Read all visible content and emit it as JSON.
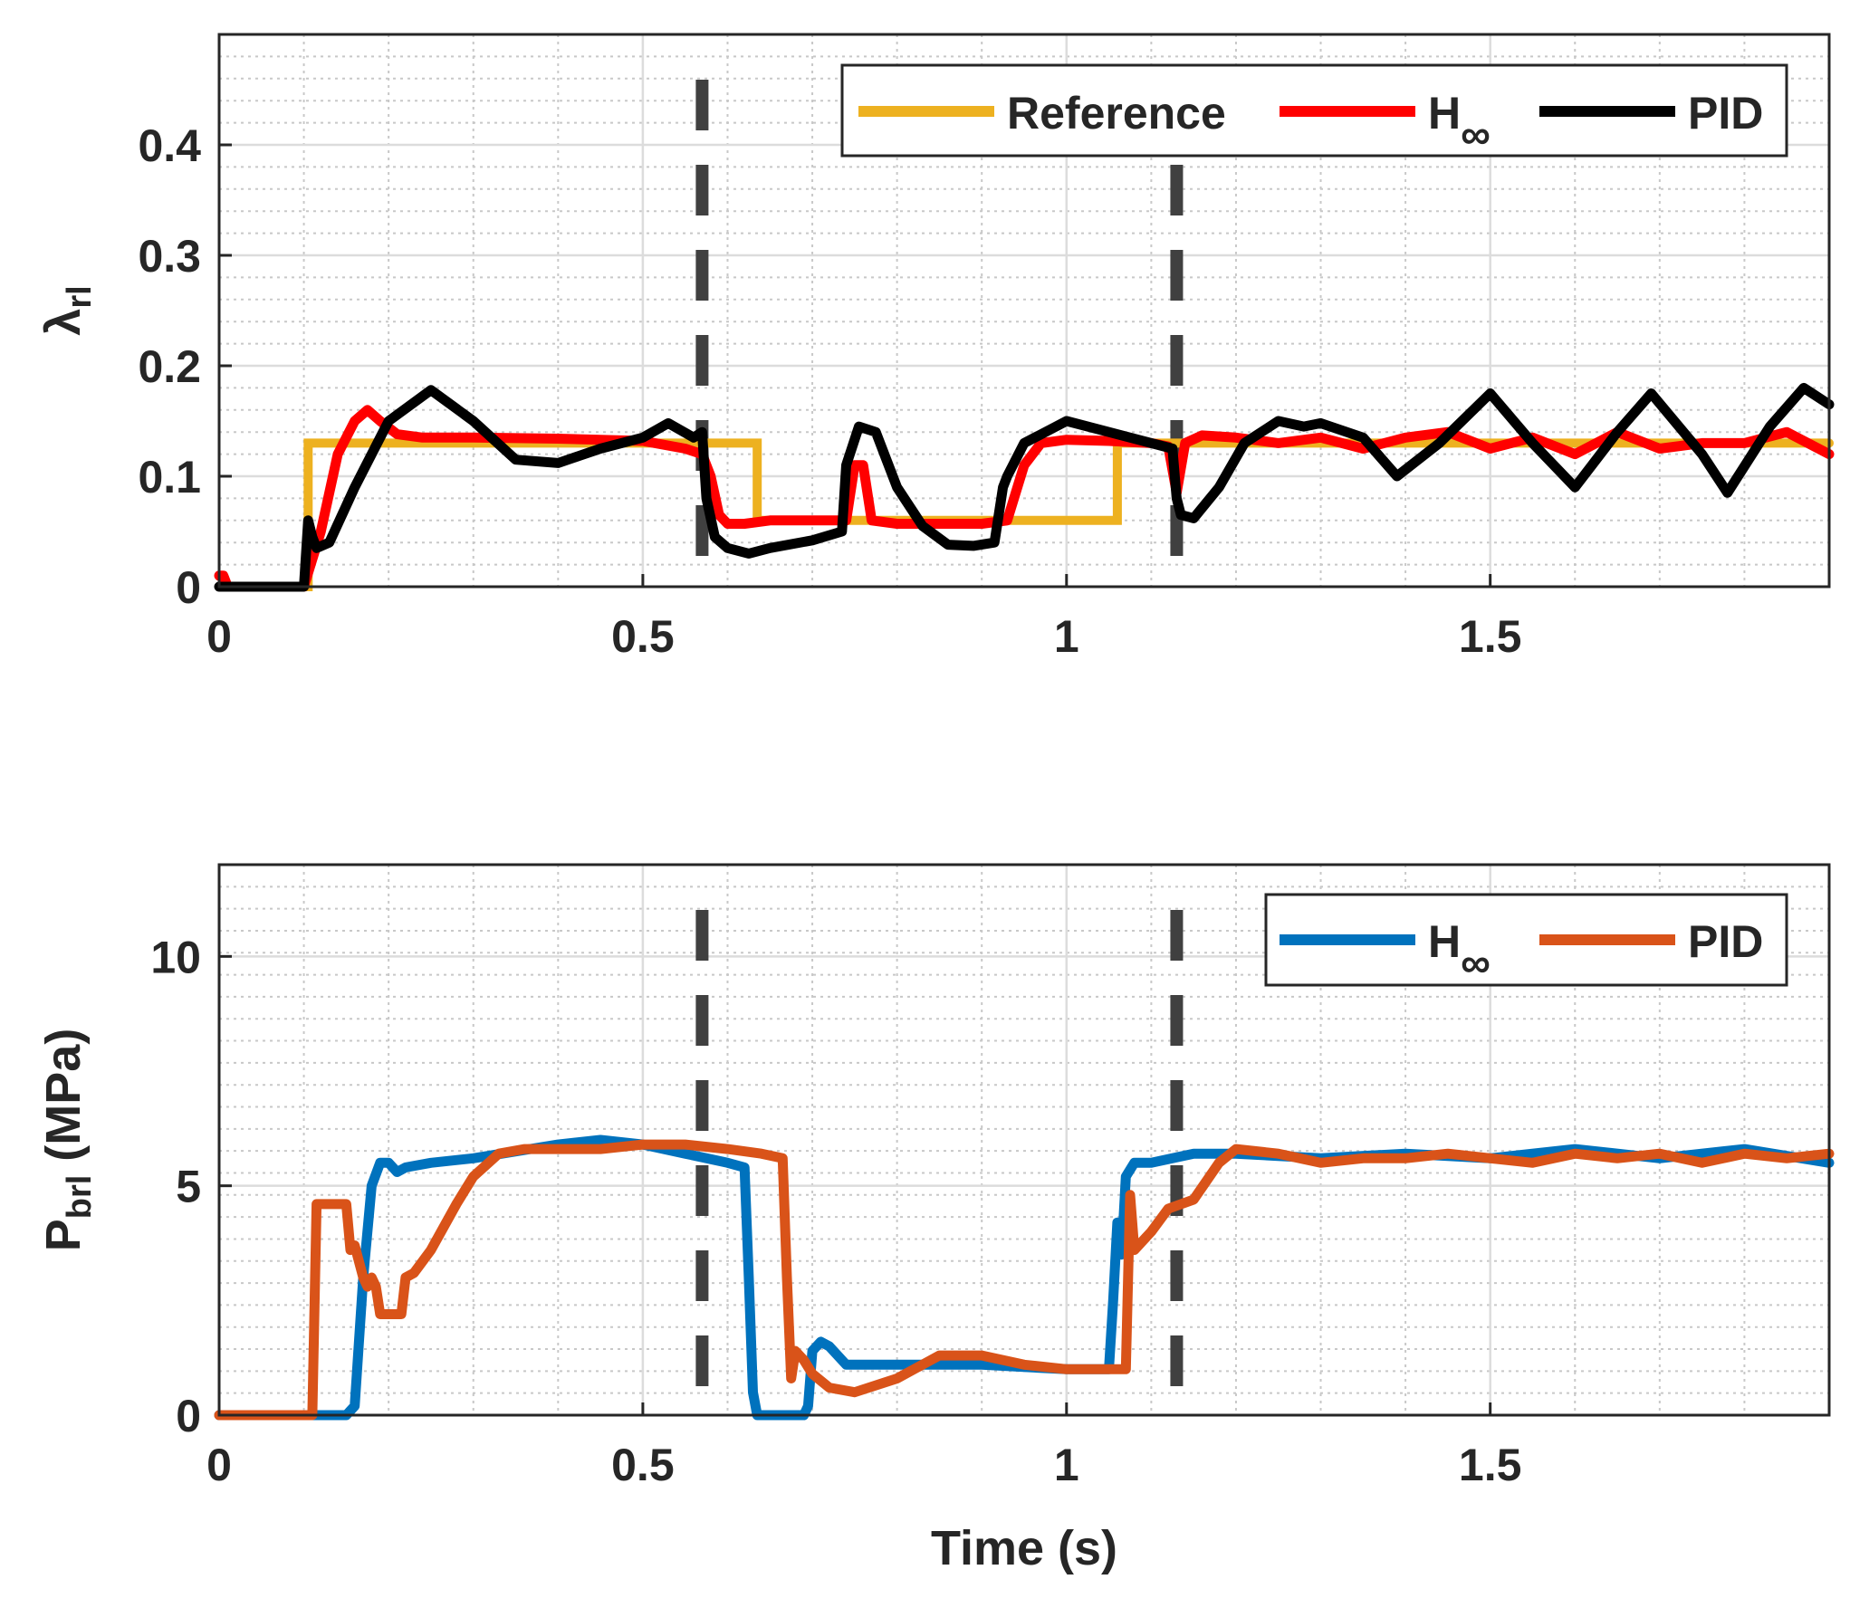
{
  "colors": {
    "reference": "#EDB120",
    "hinf_top": "#FF0000",
    "pid_top": "#000000",
    "hinf_bottom": "#0072BD",
    "pid_bottom": "#D95319",
    "event_line": "#404040",
    "grid_major": "#DCDCDC",
    "grid_minor": "#C8C8C8",
    "axes": "#262626"
  },
  "xlabel": "Time (s)",
  "chart_data": [
    {
      "type": "line",
      "ylabel": {
        "main": "λ",
        "sub": "rl"
      },
      "xlim": [
        0,
        1.9
      ],
      "ylim": [
        0,
        0.5
      ],
      "xticks": [
        0,
        0.5,
        1,
        1.5
      ],
      "xtick_labels": [
        "0",
        "0.5",
        "1",
        "1.5"
      ],
      "yticks": [
        0,
        0.1,
        0.2,
        0.3,
        0.4
      ],
      "ytick_labels": [
        "0",
        "0.1",
        "0.2",
        "0.3",
        "0.4"
      ],
      "event_lines": [
        0.57,
        1.13
      ],
      "legend_position": "top-right",
      "series": [
        {
          "key": "reference",
          "name": "Reference",
          "name_sub": "",
          "step": true,
          "x": [
            0,
            0.105,
            0.105,
            0.635,
            0.635,
            1.06,
            1.06,
            1.9
          ],
          "y": [
            0,
            0,
            0.13,
            0.13,
            0.06,
            0.06,
            0.13,
            0.13
          ]
        },
        {
          "key": "hinf_top",
          "name": "H",
          "name_sub": "∞",
          "step": false,
          "x": [
            0,
            0.005,
            0.01,
            0.1,
            0.12,
            0.14,
            0.16,
            0.175,
            0.19,
            0.21,
            0.24,
            0.3,
            0.4,
            0.5,
            0.55,
            0.57,
            0.58,
            0.59,
            0.6,
            0.62,
            0.65,
            0.7,
            0.74,
            0.75,
            0.76,
            0.77,
            0.8,
            0.85,
            0.9,
            0.93,
            0.95,
            0.97,
            1.0,
            1.05,
            1.1,
            1.12,
            1.13,
            1.14,
            1.16,
            1.2,
            1.25,
            1.3,
            1.35,
            1.4,
            1.45,
            1.5,
            1.55,
            1.6,
            1.65,
            1.7,
            1.75,
            1.8,
            1.85,
            1.9
          ],
          "y": [
            0.01,
            0.01,
            0,
            0,
            0.05,
            0.12,
            0.15,
            0.16,
            0.15,
            0.138,
            0.135,
            0.135,
            0.134,
            0.132,
            0.125,
            0.12,
            0.1,
            0.065,
            0.057,
            0.057,
            0.06,
            0.06,
            0.06,
            0.11,
            0.11,
            0.06,
            0.057,
            0.057,
            0.057,
            0.06,
            0.11,
            0.13,
            0.133,
            0.132,
            0.13,
            0.127,
            0.085,
            0.13,
            0.137,
            0.135,
            0.13,
            0.135,
            0.125,
            0.135,
            0.14,
            0.125,
            0.135,
            0.12,
            0.14,
            0.125,
            0.13,
            0.13,
            0.14,
            0.12
          ]
        },
        {
          "key": "pid_top",
          "name": "PID",
          "name_sub": "",
          "step": false,
          "x": [
            0,
            0.1,
            0.105,
            0.11,
            0.115,
            0.13,
            0.16,
            0.2,
            0.25,
            0.3,
            0.35,
            0.4,
            0.45,
            0.5,
            0.53,
            0.56,
            0.57,
            0.575,
            0.585,
            0.6,
            0.625,
            0.65,
            0.7,
            0.735,
            0.74,
            0.755,
            0.775,
            0.8,
            0.83,
            0.86,
            0.89,
            0.915,
            0.925,
            0.93,
            0.95,
            1.0,
            1.05,
            1.1,
            1.125,
            1.13,
            1.135,
            1.15,
            1.18,
            1.21,
            1.25,
            1.28,
            1.3,
            1.35,
            1.39,
            1.44,
            1.5,
            1.55,
            1.6,
            1.65,
            1.69,
            1.75,
            1.78,
            1.83,
            1.87,
            1.9
          ],
          "y": [
            0,
            0,
            0.06,
            0.045,
            0.035,
            0.04,
            0.09,
            0.15,
            0.178,
            0.15,
            0.115,
            0.112,
            0.125,
            0.135,
            0.148,
            0.135,
            0.14,
            0.08,
            0.045,
            0.035,
            0.03,
            0.035,
            0.042,
            0.05,
            0.11,
            0.145,
            0.14,
            0.09,
            0.055,
            0.038,
            0.037,
            0.04,
            0.09,
            0.1,
            0.13,
            0.15,
            0.14,
            0.13,
            0.125,
            0.08,
            0.065,
            0.062,
            0.09,
            0.13,
            0.15,
            0.145,
            0.148,
            0.135,
            0.1,
            0.13,
            0.175,
            0.13,
            0.09,
            0.14,
            0.175,
            0.12,
            0.085,
            0.145,
            0.18,
            0.165
          ]
        }
      ]
    },
    {
      "type": "line",
      "ylabel": {
        "main": "P",
        "sub": "brl",
        "suffix": " (MPa)"
      },
      "xlim": [
        0,
        1.9
      ],
      "ylim": [
        0,
        12
      ],
      "xticks": [
        0,
        0.5,
        1,
        1.5
      ],
      "xtick_labels": [
        "0",
        "0.5",
        "1",
        "1.5"
      ],
      "yticks": [
        0,
        5,
        10
      ],
      "ytick_labels": [
        "0",
        "5",
        "10"
      ],
      "event_lines": [
        0.57,
        1.13
      ],
      "legend_position": "top-right",
      "series": [
        {
          "key": "hinf_bottom",
          "name": "H",
          "name_sub": "∞",
          "step": false,
          "x": [
            0,
            0.15,
            0.16,
            0.17,
            0.18,
            0.19,
            0.2,
            0.21,
            0.22,
            0.25,
            0.3,
            0.4,
            0.45,
            0.5,
            0.55,
            0.6,
            0.62,
            0.625,
            0.63,
            0.635,
            0.69,
            0.695,
            0.7,
            0.71,
            0.72,
            0.74,
            0.8,
            0.9,
            1.0,
            1.05,
            1.055,
            1.06,
            1.065,
            1.07,
            1.08,
            1.1,
            1.15,
            1.2,
            1.3,
            1.4,
            1.5,
            1.6,
            1.7,
            1.8,
            1.9
          ],
          "y": [
            0,
            0,
            0.2,
            3,
            5,
            5.5,
            5.5,
            5.3,
            5.4,
            5.5,
            5.6,
            5.9,
            6.0,
            5.9,
            5.7,
            5.5,
            5.4,
            3,
            0.5,
            0,
            0,
            0.2,
            1.4,
            1.6,
            1.5,
            1.1,
            1.1,
            1.1,
            1.0,
            1.0,
            2.5,
            4.2,
            3.5,
            5.2,
            5.5,
            5.5,
            5.7,
            5.7,
            5.6,
            5.7,
            5.6,
            5.8,
            5.6,
            5.8,
            5.5
          ]
        },
        {
          "key": "pid_bottom",
          "name": "PID",
          "name_sub": "",
          "step": false,
          "x": [
            0,
            0.11,
            0.115,
            0.15,
            0.155,
            0.16,
            0.17,
            0.175,
            0.18,
            0.185,
            0.19,
            0.2,
            0.215,
            0.22,
            0.23,
            0.25,
            0.28,
            0.3,
            0.33,
            0.36,
            0.4,
            0.45,
            0.5,
            0.55,
            0.6,
            0.64,
            0.665,
            0.67,
            0.675,
            0.68,
            0.69,
            0.7,
            0.72,
            0.75,
            0.8,
            0.85,
            0.9,
            0.95,
            1.0,
            1.05,
            1.07,
            1.075,
            1.08,
            1.09,
            1.1,
            1.12,
            1.15,
            1.18,
            1.2,
            1.25,
            1.3,
            1.35,
            1.4,
            1.45,
            1.5,
            1.55,
            1.6,
            1.65,
            1.7,
            1.75,
            1.8,
            1.85,
            1.9
          ],
          "y": [
            0,
            0,
            4.6,
            4.6,
            3.6,
            3.7,
            3.0,
            2.8,
            3.0,
            2.8,
            2.2,
            2.2,
            2.2,
            3.0,
            3.1,
            3.6,
            4.6,
            5.2,
            5.7,
            5.8,
            5.8,
            5.8,
            5.9,
            5.9,
            5.8,
            5.7,
            5.6,
            3.0,
            0.8,
            1.4,
            1.2,
            0.9,
            0.6,
            0.5,
            0.8,
            1.3,
            1.3,
            1.1,
            1.0,
            1.0,
            1.0,
            4.8,
            3.6,
            3.8,
            4.0,
            4.5,
            4.7,
            5.5,
            5.8,
            5.7,
            5.5,
            5.6,
            5.6,
            5.7,
            5.6,
            5.5,
            5.7,
            5.6,
            5.7,
            5.5,
            5.7,
            5.6,
            5.7
          ]
        }
      ]
    }
  ]
}
